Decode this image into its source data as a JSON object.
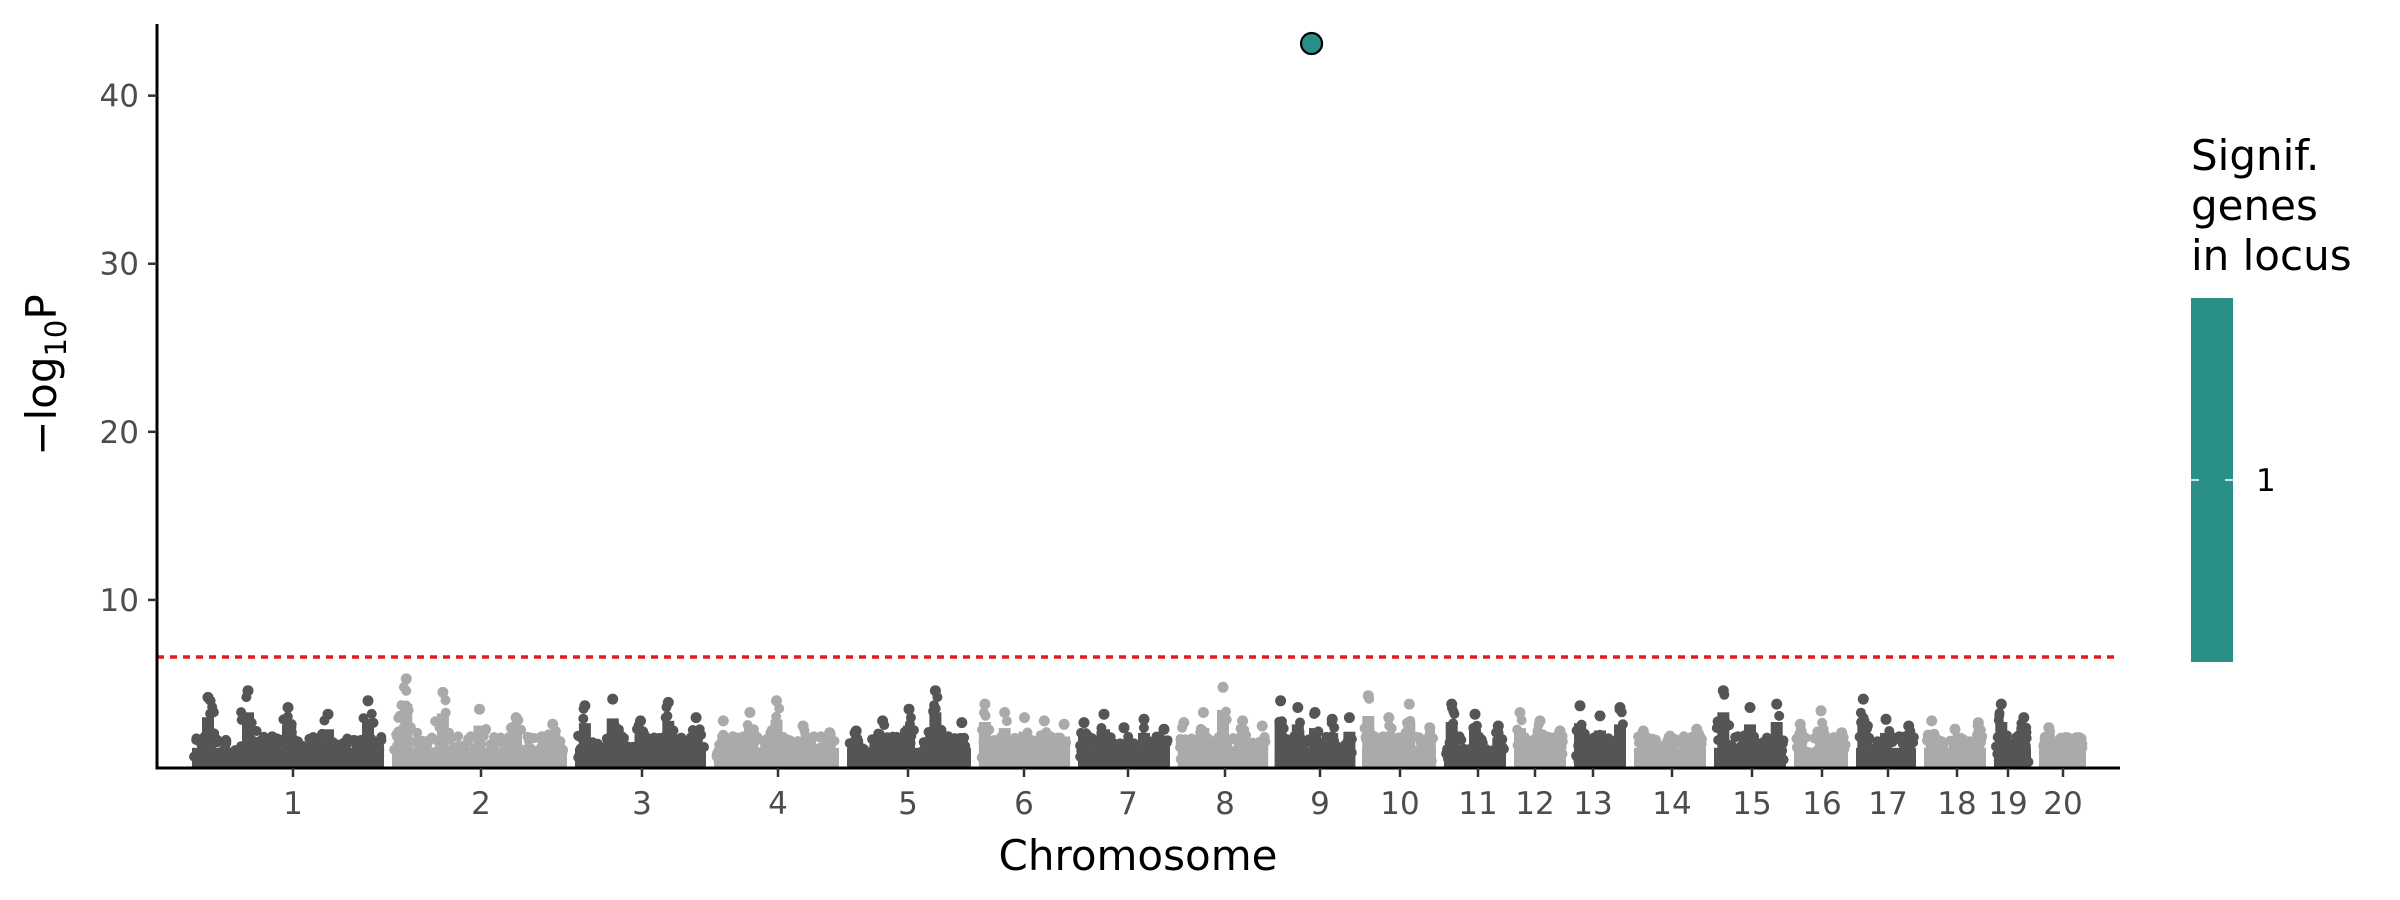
{
  "chart_data": {
    "type": "scatter",
    "subtype": "manhattan",
    "title": "",
    "xlabel": "Chromosome",
    "ylabel_prefix": "−log",
    "ylabel_sub": "10",
    "ylabel_suffix": "P",
    "ylim": [
      0,
      44.5
    ],
    "yticks": [
      10,
      20,
      30,
      40
    ],
    "grid": false,
    "significance_threshold": 6.6,
    "threshold_color": "#e41a1c",
    "chromosome_colors": [
      "#555555",
      "#aaaaaa"
    ],
    "chromosomes": [
      {
        "label": "1",
        "peaks": [
          4.2,
          4.6,
          3.6,
          3.2,
          4.0
        ]
      },
      {
        "label": "2",
        "peaks": [
          5.3,
          4.5,
          3.5,
          3.0,
          2.6
        ]
      },
      {
        "label": "3",
        "peaks": [
          3.7,
          4.1,
          2.8,
          3.9,
          3.0
        ]
      },
      {
        "label": "4",
        "peaks": [
          2.8,
          3.3,
          4.0,
          2.5,
          2.1
        ]
      },
      {
        "label": "5",
        "peaks": [
          2.2,
          2.8,
          3.5,
          4.6,
          2.7
        ]
      },
      {
        "label": "6",
        "peaks": [
          3.8,
          3.3,
          3.0,
          2.8,
          2.6
        ]
      },
      {
        "label": "7",
        "peaks": [
          2.7,
          3.2,
          2.4,
          2.9,
          2.3
        ]
      },
      {
        "label": "8",
        "peaks": [
          2.7,
          3.3,
          4.8,
          2.8,
          2.5
        ]
      },
      {
        "label": "9",
        "peaks": [
          4.0,
          3.6,
          3.3,
          2.9,
          3.0
        ]
      },
      {
        "label": "10",
        "peaks": [
          4.3,
          3.0,
          3.8,
          2.4
        ]
      },
      {
        "label": "11",
        "peaks": [
          3.8,
          3.2,
          2.5
        ]
      },
      {
        "label": "12",
        "peaks": [
          3.3,
          2.8,
          2.2
        ]
      },
      {
        "label": "13",
        "peaks": [
          3.7,
          3.1,
          3.6
        ]
      },
      {
        "label": "14",
        "peaks": [
          2.2,
          1.9,
          2.3
        ]
      },
      {
        "label": "15",
        "peaks": [
          4.6,
          3.6,
          3.8
        ]
      },
      {
        "label": "16",
        "peaks": [
          2.6,
          3.4,
          2.1
        ]
      },
      {
        "label": "17",
        "peaks": [
          4.1,
          2.9,
          2.5
        ]
      },
      {
        "label": "18",
        "peaks": [
          2.8,
          2.3,
          2.7
        ]
      },
      {
        "label": "19",
        "peaks": [
          3.8,
          3.0
        ]
      },
      {
        "label": "20",
        "peaks": [
          2.4,
          1.8
        ]
      }
    ],
    "highlight_points": [
      {
        "chromosome": "9",
        "y": 43.1,
        "color": "#2a9087",
        "genes_in_locus": 1
      }
    ],
    "legend": {
      "title_lines": [
        "Signif.",
        "genes",
        "in locus"
      ],
      "placement": "right",
      "color": "#2a9087",
      "tick_label": "1"
    }
  }
}
